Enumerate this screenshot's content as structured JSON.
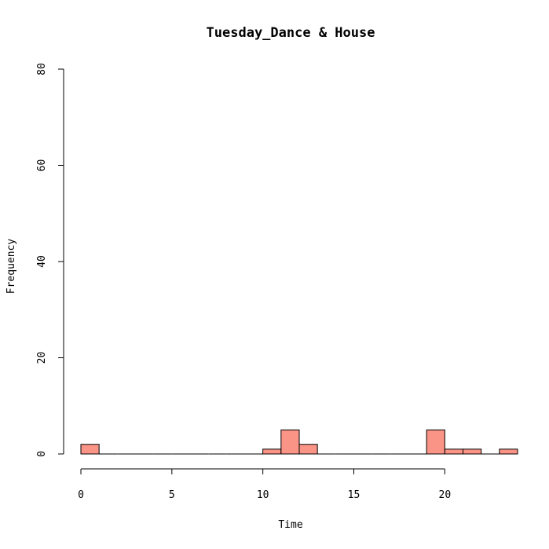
{
  "chart_data": {
    "type": "bar",
    "title": "Tuesday_Dance & House",
    "xlabel": "Time",
    "ylabel": "Frequency",
    "xlim": [
      0,
      24
    ],
    "ylim": [
      0,
      80
    ],
    "x_ticks": [
      0,
      5,
      10,
      15,
      20
    ],
    "y_ticks": [
      0,
      20,
      40,
      60,
      80
    ],
    "bin_width": 1,
    "bin_starts": [
      0,
      1,
      2,
      3,
      4,
      5,
      6,
      7,
      8,
      9,
      10,
      11,
      12,
      13,
      14,
      15,
      16,
      17,
      18,
      19,
      20,
      21,
      22,
      23
    ],
    "values": [
      2,
      0,
      0,
      0,
      0,
      0,
      0,
      0,
      0,
      0,
      1,
      5,
      2,
      0,
      0,
      0,
      0,
      0,
      0,
      5,
      1,
      1,
      0,
      1
    ],
    "bar_color": "#fa9486",
    "grid": false,
    "legend": "none"
  }
}
